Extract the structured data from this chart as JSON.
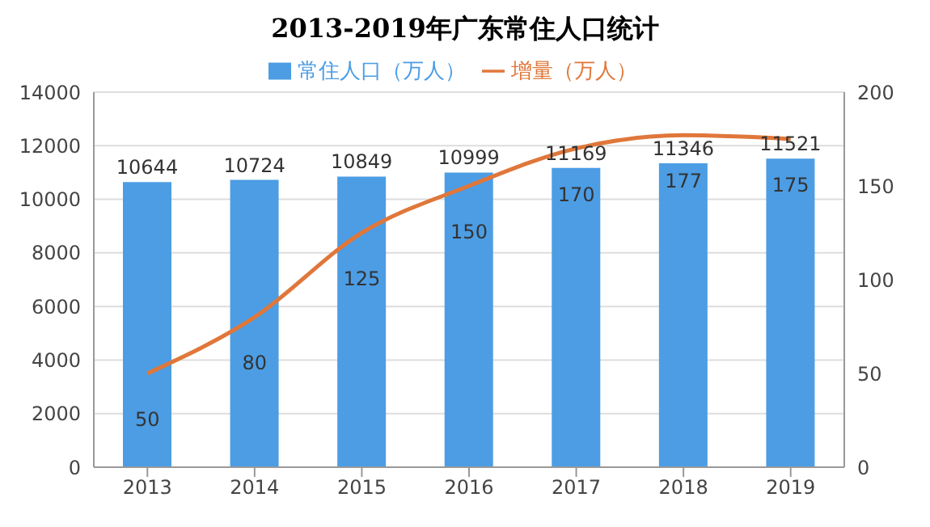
{
  "chart_data": {
    "type": "bar",
    "title": "2013-2019年广东常住人口统计",
    "categories": [
      "2013",
      "2014",
      "2015",
      "2016",
      "2017",
      "2018",
      "2019"
    ],
    "series": [
      {
        "name": "常住人口（万人）",
        "color": "#4c9de4",
        "values": [
          10644,
          10724,
          10849,
          10999,
          11169,
          11346,
          11521
        ]
      },
      {
        "name": "增量（万人）",
        "type": "line",
        "axis": "y2",
        "color": "#e0773a",
        "values": [
          50,
          80,
          125,
          150,
          170,
          177,
          175
        ]
      }
    ],
    "ylim": [
      0,
      14000
    ],
    "yticks": [
      0,
      2000,
      4000,
      6000,
      8000,
      10000,
      12000,
      14000
    ],
    "y2lim": [
      0,
      200
    ],
    "y2ticks": [
      0,
      50,
      100,
      150,
      200
    ],
    "grid": "y",
    "legend": "top",
    "marker": "none",
    "data_labels": true
  }
}
